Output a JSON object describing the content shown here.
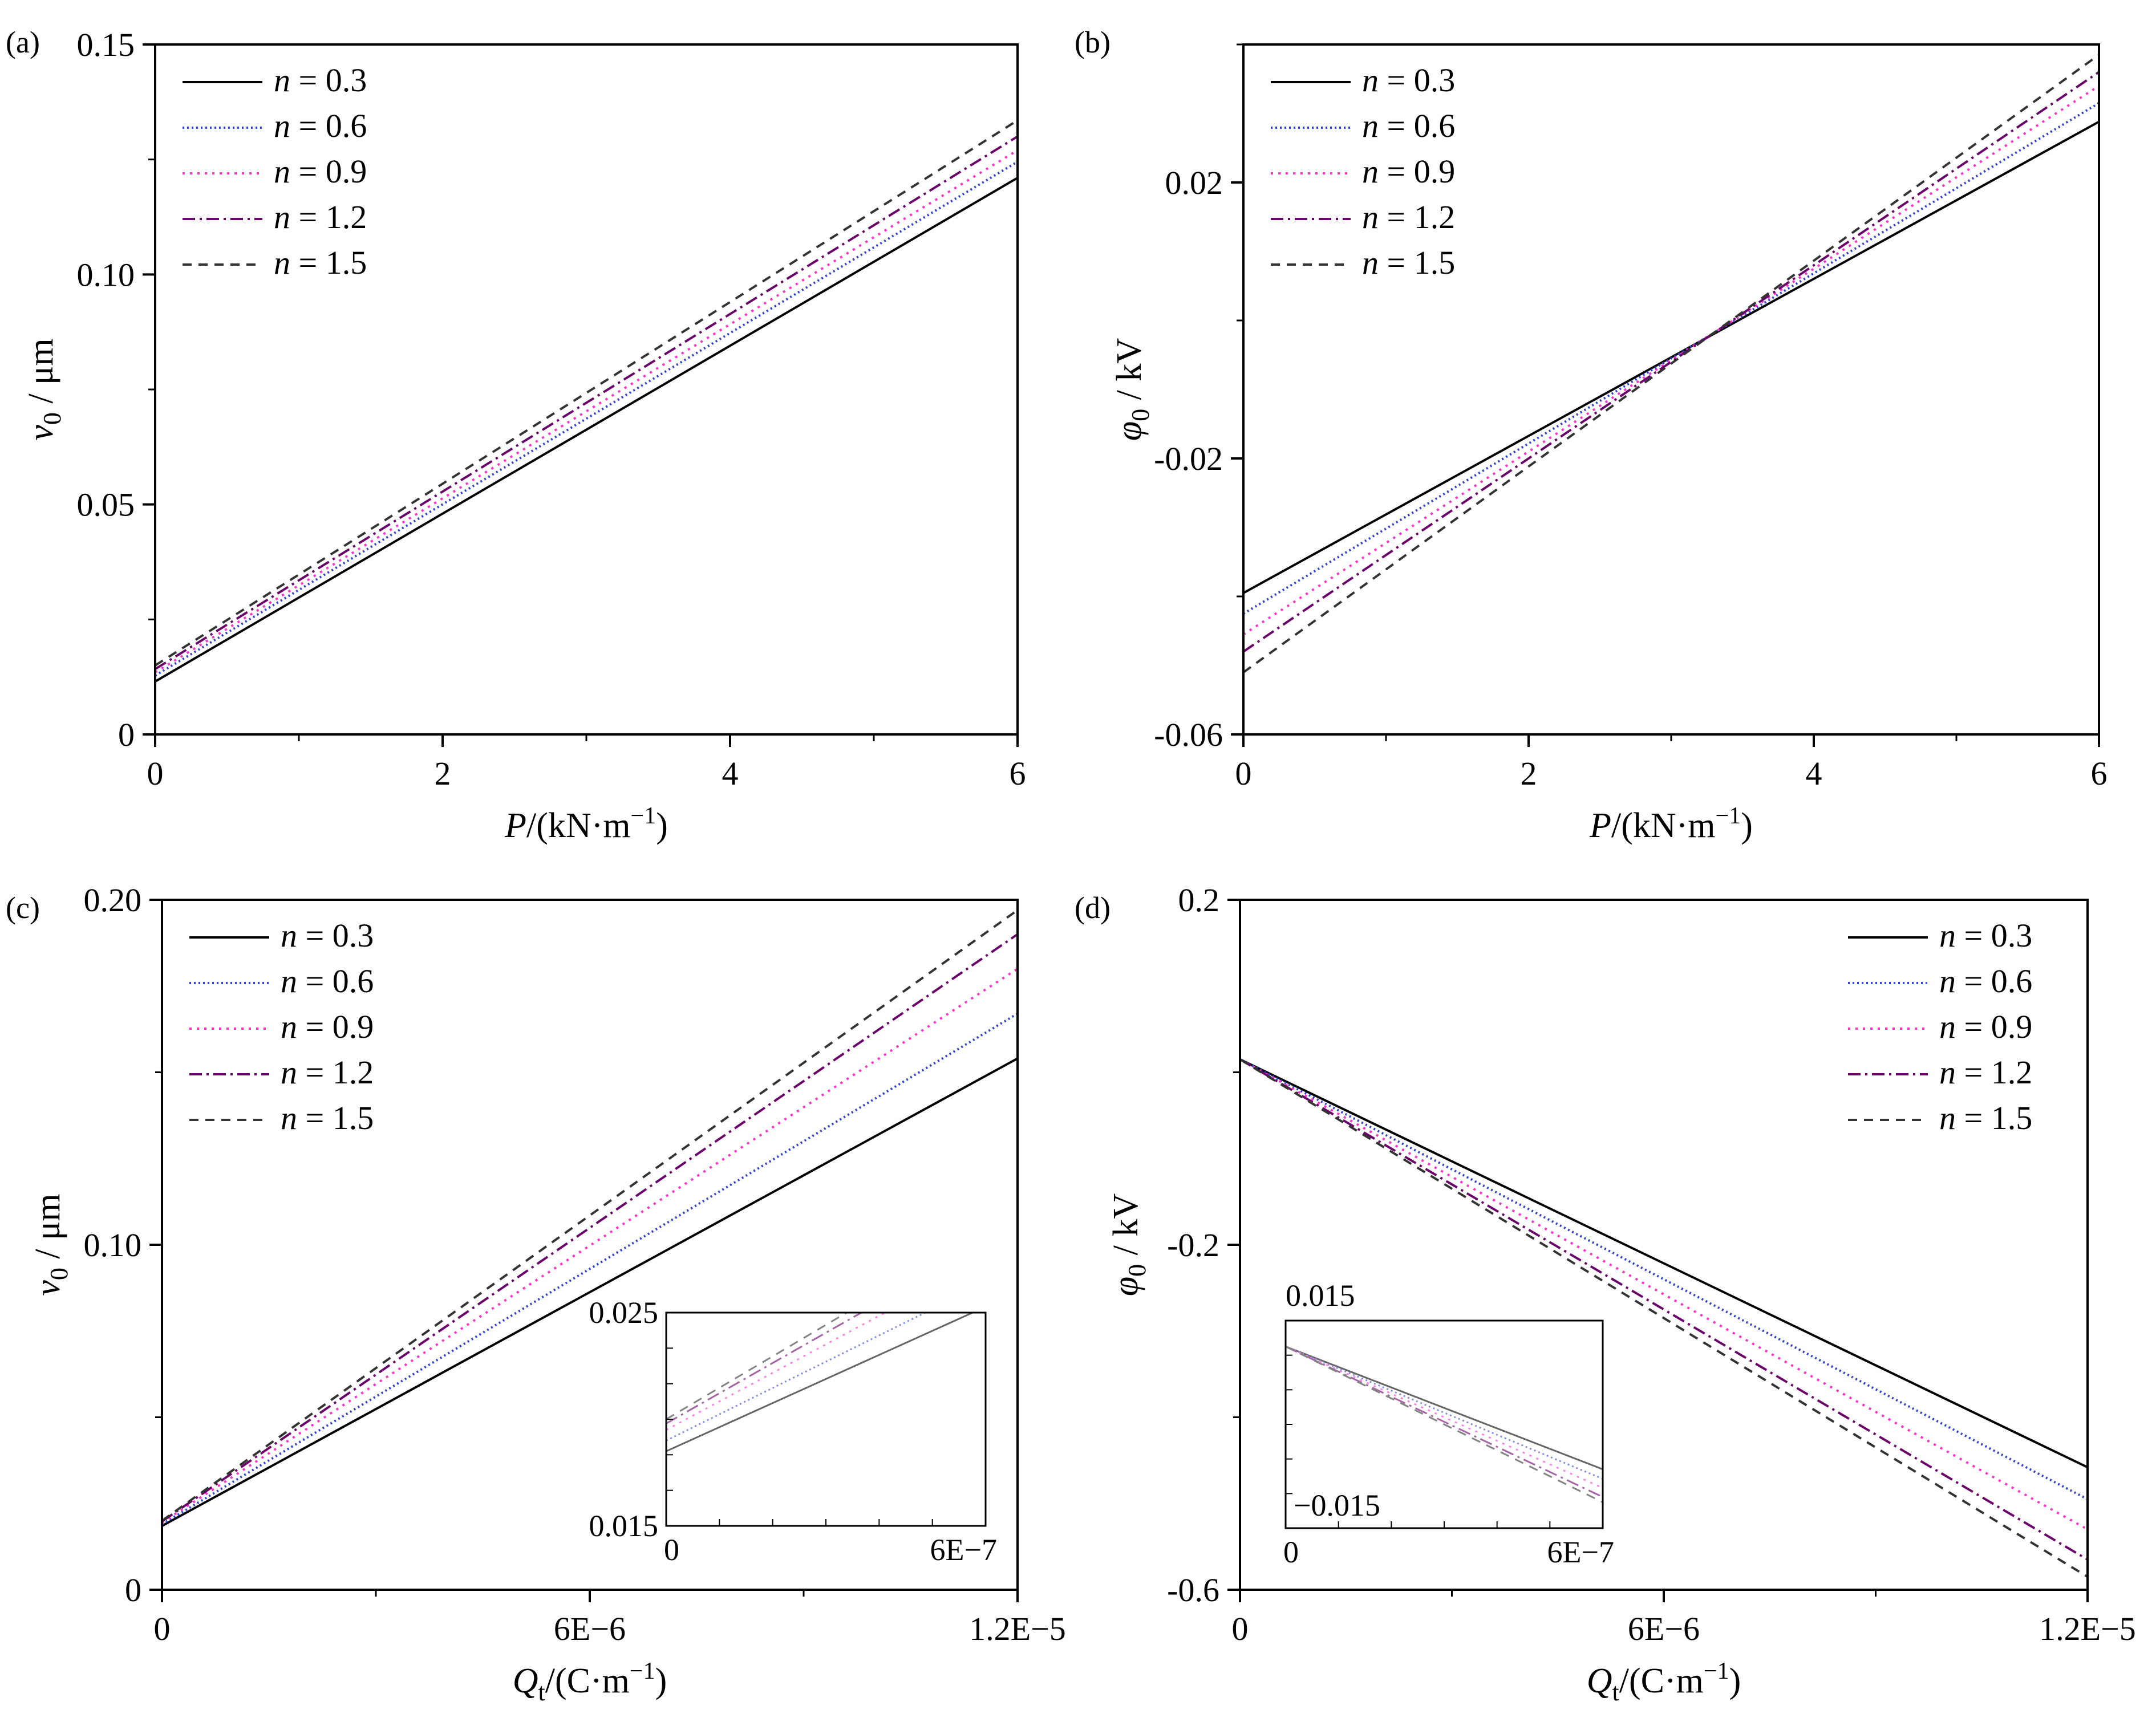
{
  "figure": {
    "panels": [
      "(a)",
      "(b)",
      "(c)",
      "(d)"
    ]
  },
  "legend_entries": [
    "n = 0.3",
    "n = 0.6",
    "n = 0.9",
    "n = 1.2",
    "n = 1.5"
  ],
  "series_colors": {
    "n = 0.3": "#000000",
    "n = 0.6": "#3344cc",
    "n = 0.9": "#ff33cc",
    "n = 1.2": "#6a006a",
    "n = 1.5": "#333333"
  },
  "chart_data": [
    {
      "panel_label": "(a)",
      "type": "line",
      "xlabel": "P/(kN·m⁻¹)",
      "ylabel": "v₀ / μm",
      "xlim": [
        0,
        6
      ],
      "ylim": [
        0,
        0.15
      ],
      "x_ticks": [
        "0",
        "2",
        "4",
        "6"
      ],
      "y_ticks": [
        "0",
        "0.05",
        "0.10",
        "0.15"
      ],
      "legend": "top-left",
      "series": [
        {
          "name": "n = 0.3",
          "x": [
            0,
            6
          ],
          "y": [
            0.0115,
            0.121
          ]
        },
        {
          "name": "n = 0.6",
          "x": [
            0,
            6
          ],
          "y": [
            0.0128,
            0.1245
          ]
        },
        {
          "name": "n = 0.9",
          "x": [
            0,
            6
          ],
          "y": [
            0.0135,
            0.127
          ]
        },
        {
          "name": "n = 1.2",
          "x": [
            0,
            6
          ],
          "y": [
            0.0142,
            0.13
          ]
        },
        {
          "name": "n = 1.5",
          "x": [
            0,
            6
          ],
          "y": [
            0.015,
            0.1335
          ]
        }
      ]
    },
    {
      "panel_label": "(b)",
      "type": "line",
      "xlabel": "P/(kN·m⁻¹)",
      "ylabel": "φ₀ / kV",
      "xlim": [
        0,
        6
      ],
      "ylim": [
        -0.06,
        0.04
      ],
      "x_ticks": [
        "0",
        "2",
        "4",
        "6"
      ],
      "y_ticks": [
        "-0.06",
        "-0.02",
        "0.02"
      ],
      "legend": "top-left",
      "series": [
        {
          "name": "n = 0.3",
          "x": [
            0,
            6
          ],
          "y": [
            -0.0395,
            0.0288
          ]
        },
        {
          "name": "n = 0.6",
          "x": [
            0,
            6
          ],
          "y": [
            -0.0425,
            0.0315
          ]
        },
        {
          "name": "n = 0.9",
          "x": [
            0,
            6
          ],
          "y": [
            -0.0455,
            0.034
          ]
        },
        {
          "name": "n = 1.2",
          "x": [
            0,
            6
          ],
          "y": [
            -0.048,
            0.036
          ]
        },
        {
          "name": "n = 1.5",
          "x": [
            0,
            6
          ],
          "y": [
            -0.051,
            0.0385
          ]
        }
      ]
    },
    {
      "panel_label": "(c)",
      "type": "line",
      "xlabel": "Qₜ/(C·m⁻¹)",
      "ylabel": "v₀ / μm",
      "xlim": [
        0,
        1.2e-05
      ],
      "ylim": [
        0,
        0.2
      ],
      "x_ticks": [
        "0",
        "6E−6",
        "1.2E−5"
      ],
      "y_ticks": [
        "0",
        "0.10",
        "0.20"
      ],
      "legend": "top-left",
      "series": [
        {
          "name": "n = 0.3",
          "x": [
            0,
            1.2e-05
          ],
          "y": [
            0.0185,
            0.154
          ]
        },
        {
          "name": "n = 0.6",
          "x": [
            0,
            1.2e-05
          ],
          "y": [
            0.019,
            0.167
          ]
        },
        {
          "name": "n = 0.9",
          "x": [
            0,
            1.2e-05
          ],
          "y": [
            0.0195,
            0.18
          ]
        },
        {
          "name": "n = 1.2",
          "x": [
            0,
            1.2e-05
          ],
          "y": [
            0.0198,
            0.19
          ]
        },
        {
          "name": "n = 1.5",
          "x": [
            0,
            1.2e-05
          ],
          "y": [
            0.02,
            0.197
          ]
        }
      ],
      "inset": {
        "xlim": [
          0,
          6e-07
        ],
        "ylim": [
          0.015,
          0.025
        ],
        "x_ticks": [
          "0",
          "6E−7"
        ],
        "y_ticks": [
          "0.015",
          "0.025"
        ]
      }
    },
    {
      "panel_label": "(d)",
      "type": "line",
      "xlabel": "Qₜ/(C·m⁻¹)",
      "ylabel": "φ₀ / kV",
      "xlim": [
        0,
        1.2e-05
      ],
      "ylim": [
        -0.6,
        0.2
      ],
      "x_ticks": [
        "0",
        "6E−6",
        "1.2E−5"
      ],
      "y_ticks": [
        "-0.6",
        "-0.2",
        "0.2"
      ],
      "legend": "top-right",
      "series": [
        {
          "name": "n = 0.3",
          "x": [
            0,
            1.2e-05
          ],
          "y": [
            0.015,
            -0.458
          ]
        },
        {
          "name": "n = 0.6",
          "x": [
            0,
            1.2e-05
          ],
          "y": [
            0.015,
            -0.495
          ]
        },
        {
          "name": "n = 0.9",
          "x": [
            0,
            1.2e-05
          ],
          "y": [
            0.015,
            -0.53
          ]
        },
        {
          "name": "n = 1.2",
          "x": [
            0,
            1.2e-05
          ],
          "y": [
            0.015,
            -0.565
          ]
        },
        {
          "name": "n = 1.5",
          "x": [
            0,
            1.2e-05
          ],
          "y": [
            0.015,
            -0.585
          ]
        }
      ],
      "inset": {
        "xlim": [
          0,
          6e-07
        ],
        "ylim": [
          -0.02,
          0.02
        ],
        "x_ticks": [
          "0",
          "6E−7"
        ],
        "y_ticks": [
          "0.015",
          "−0.015"
        ]
      }
    }
  ]
}
